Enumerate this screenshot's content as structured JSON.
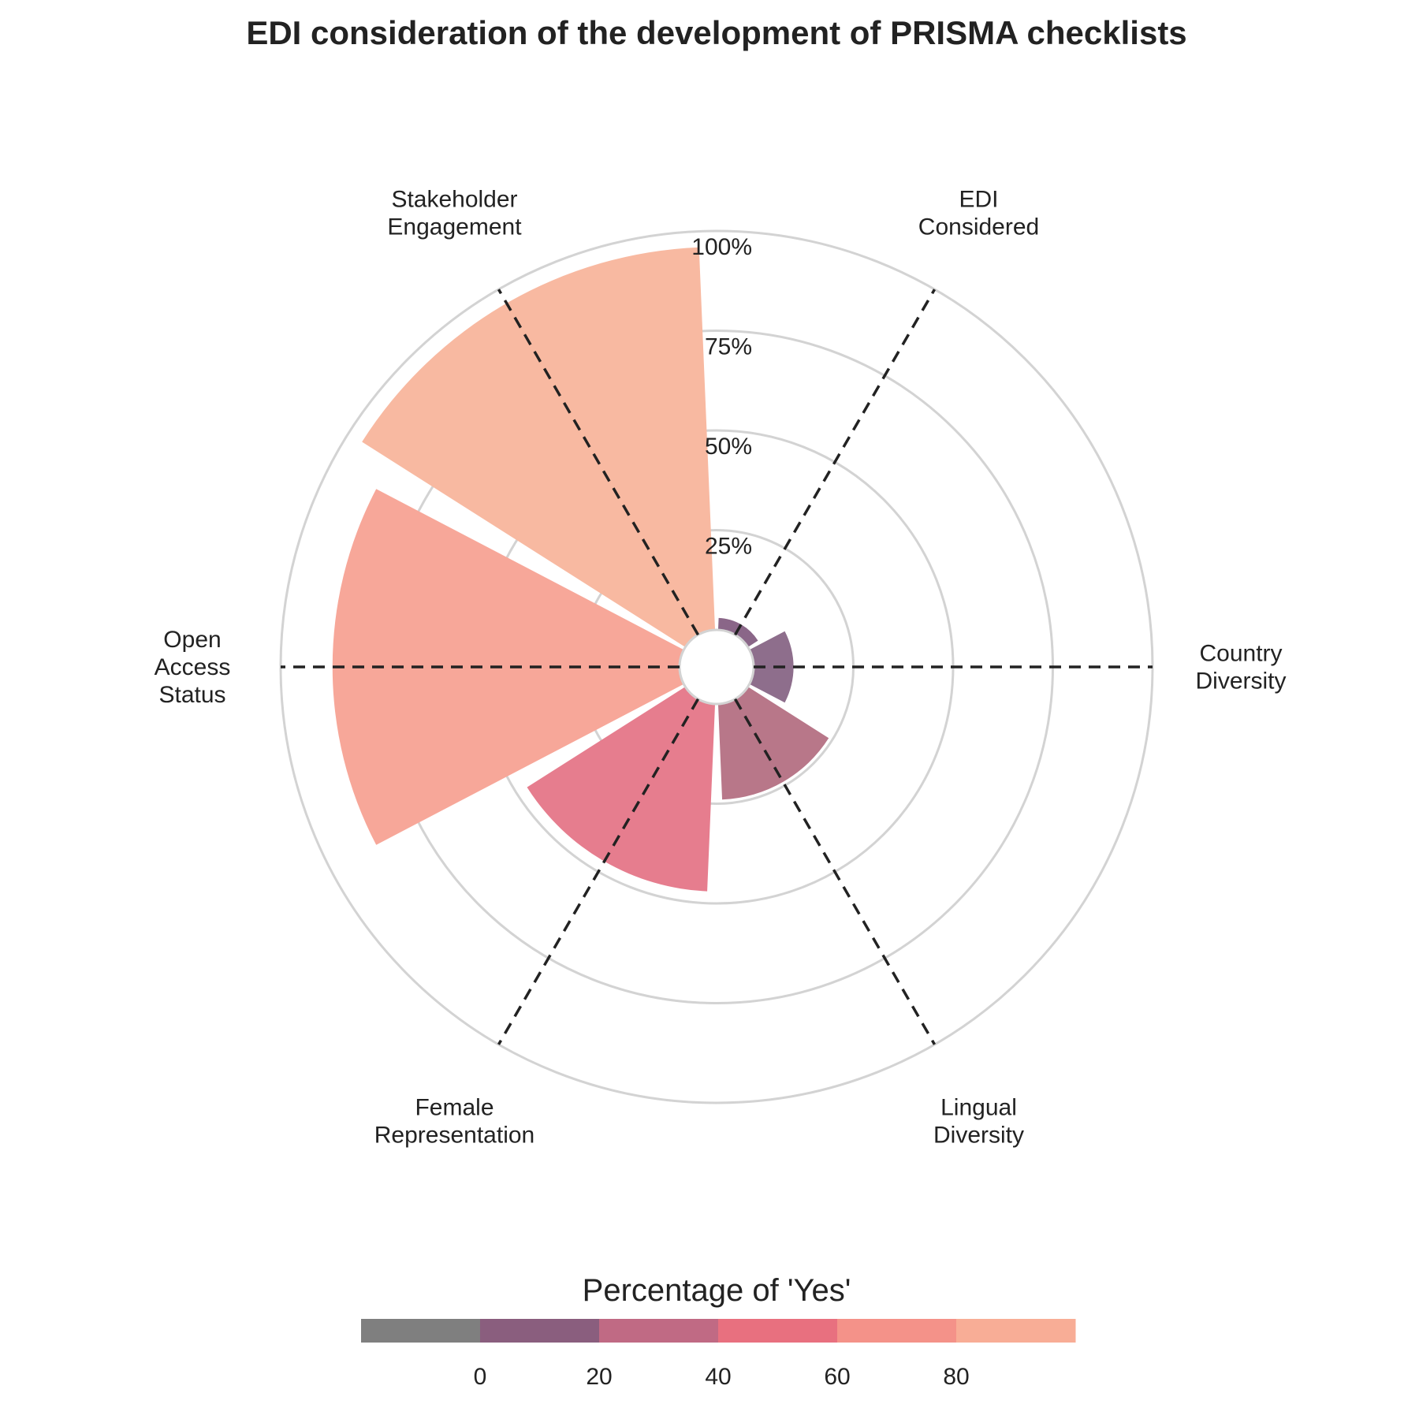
{
  "chart_data": {
    "type": "bar",
    "subtype": "polar",
    "title": "EDI consideration of the development of PRISMA checklists",
    "categories": [
      [
        "Country",
        "Diversity"
      ],
      [
        "EDI",
        "Considered"
      ],
      [
        "Stakeholder",
        "Engagement"
      ],
      [
        "Open",
        "Access",
        "Status"
      ],
      [
        "Female",
        "Representation"
      ],
      [
        "Lingual",
        "Diversity"
      ]
    ],
    "values": [
      10,
      3,
      96,
      87,
      47,
      24
    ],
    "bar_colors": [
      "#8e6e8c",
      "#8a6688",
      "#f8b9a1",
      "#f7a799",
      "#e67d8e",
      "#b87789"
    ],
    "radial_ticks": [
      25,
      50,
      75,
      100
    ],
    "radial_tick_labels": [
      "25%",
      "50%",
      "75%",
      "100%"
    ],
    "ylim": [
      0,
      100
    ],
    "grid": true,
    "colorbar": {
      "title": "Percentage of 'Yes'",
      "tick_values": [
        0,
        20,
        40,
        60,
        80
      ],
      "tick_labels": [
        "0",
        "20",
        "40",
        "60",
        "80"
      ],
      "range": [
        -20,
        100
      ],
      "colors": [
        "#7f7f7f",
        "#8a5e7e",
        "#c06a84",
        "#e8707f",
        "#f49289",
        "#f8ad96"
      ]
    }
  }
}
